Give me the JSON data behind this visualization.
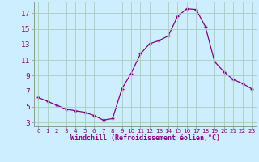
{
  "x": [
    0,
    1,
    2,
    3,
    4,
    5,
    6,
    7,
    8,
    9,
    10,
    11,
    12,
    13,
    14,
    15,
    16,
    17,
    18,
    19,
    20,
    21,
    22,
    23
  ],
  "y": [
    6.2,
    5.7,
    5.2,
    4.7,
    4.5,
    4.3,
    3.9,
    3.3,
    3.5,
    7.3,
    9.3,
    11.8,
    13.1,
    13.5,
    14.1,
    16.6,
    17.6,
    17.5,
    15.3,
    10.8,
    9.5,
    8.5,
    8.0,
    7.3
  ],
  "xlabel": "Windchill (Refroidissement éolien,°C)",
  "bg_color": "#cceeff",
  "grid_color": "#aaccbb",
  "line_color": "#880088",
  "marker_color": "#880088",
  "yticks": [
    3,
    5,
    7,
    9,
    11,
    13,
    15,
    17
  ],
  "ylim": [
    2.5,
    18.5
  ],
  "xlim": [
    -0.5,
    23.5
  ],
  "xtick_labels": [
    "0",
    "1",
    "2",
    "3",
    "4",
    "5",
    "6",
    "7",
    "8",
    "9",
    "10",
    "11",
    "12",
    "13",
    "14",
    "15",
    "16",
    "17",
    "18",
    "19",
    "20",
    "21",
    "22",
    "23"
  ],
  "xlabel_fontsize": 6.0,
  "ytick_fontsize": 6.5,
  "xtick_fontsize": 5.2
}
